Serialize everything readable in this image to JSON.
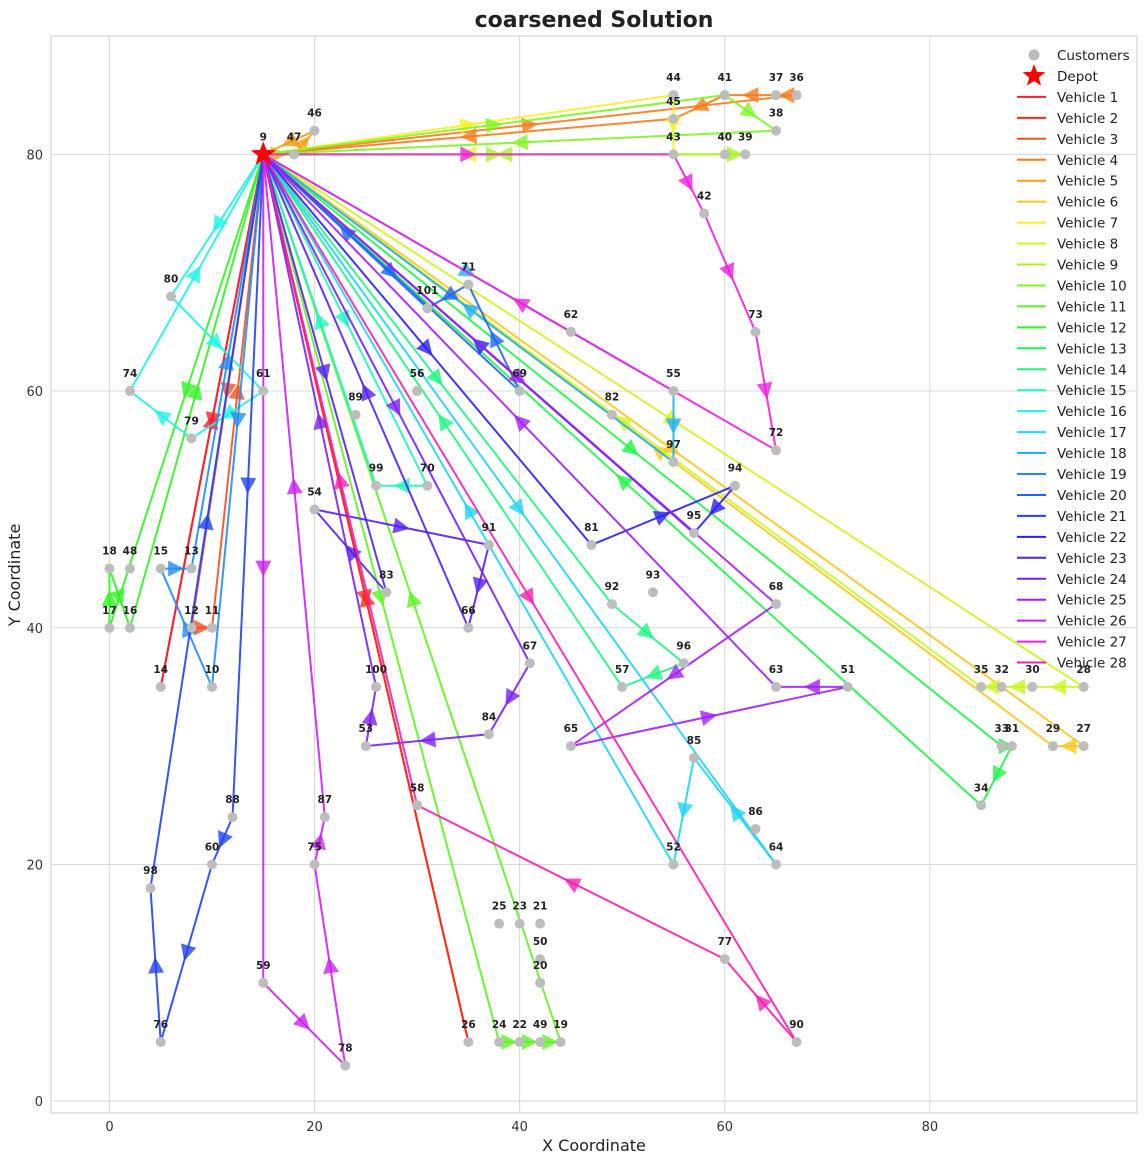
{
  "chart_data": {
    "type": "scatter",
    "title": "coarsened Solution",
    "xlabel": "X Coordinate",
    "ylabel": "Y Coordinate",
    "xlim": [
      -5.7,
      100.2
    ],
    "ylim": [
      -1.0,
      90.0
    ],
    "xticks": [
      0,
      20,
      40,
      60,
      80
    ],
    "yticks": [
      0,
      20,
      40,
      60,
      80
    ],
    "grid": true,
    "legend_position": "top-right",
    "depot": {
      "id": "9",
      "x": 15,
      "y": 80
    },
    "customers": [
      {
        "id": "9",
        "x": 15,
        "y": 80
      },
      {
        "id": "46",
        "x": 20,
        "y": 82
      },
      {
        "id": "47",
        "x": 18,
        "y": 80
      },
      {
        "id": "44",
        "x": 55,
        "y": 85
      },
      {
        "id": "41",
        "x": 60,
        "y": 85
      },
      {
        "id": "37",
        "x": 65,
        "y": 85
      },
      {
        "id": "36",
        "x": 67,
        "y": 85
      },
      {
        "id": "45",
        "x": 55,
        "y": 83
      },
      {
        "id": "38",
        "x": 65,
        "y": 82
      },
      {
        "id": "43",
        "x": 55,
        "y": 80
      },
      {
        "id": "40",
        "x": 60,
        "y": 80
      },
      {
        "id": "39",
        "x": 62,
        "y": 80
      },
      {
        "id": "42",
        "x": 58,
        "y": 75
      },
      {
        "id": "80",
        "x": 6,
        "y": 68
      },
      {
        "id": "71",
        "x": 35,
        "y": 69
      },
      {
        "id": "101",
        "x": 31,
        "y": 67
      },
      {
        "id": "62",
        "x": 45,
        "y": 65
      },
      {
        "id": "73",
        "x": 63,
        "y": 65
      },
      {
        "id": "74",
        "x": 2,
        "y": 60
      },
      {
        "id": "61",
        "x": 15,
        "y": 60
      },
      {
        "id": "89",
        "x": 24,
        "y": 58
      },
      {
        "id": "56",
        "x": 30,
        "y": 60
      },
      {
        "id": "69",
        "x": 40,
        "y": 60
      },
      {
        "id": "82",
        "x": 49,
        "y": 58
      },
      {
        "id": "55",
        "x": 55,
        "y": 60
      },
      {
        "id": "79",
        "x": 8,
        "y": 56
      },
      {
        "id": "97",
        "x": 55,
        "y": 54
      },
      {
        "id": "72",
        "x": 65,
        "y": 55
      },
      {
        "id": "99",
        "x": 26,
        "y": 52
      },
      {
        "id": "70",
        "x": 31,
        "y": 52
      },
      {
        "id": "94",
        "x": 61,
        "y": 52
      },
      {
        "id": "54",
        "x": 20,
        "y": 50
      },
      {
        "id": "95",
        "x": 57,
        "y": 48
      },
      {
        "id": "91",
        "x": 37,
        "y": 47
      },
      {
        "id": "81",
        "x": 47,
        "y": 47
      },
      {
        "id": "18",
        "x": 0,
        "y": 45
      },
      {
        "id": "48",
        "x": 2,
        "y": 45
      },
      {
        "id": "15",
        "x": 5,
        "y": 45
      },
      {
        "id": "13",
        "x": 8,
        "y": 45
      },
      {
        "id": "83",
        "x": 27,
        "y": 43
      },
      {
        "id": "92",
        "x": 49,
        "y": 42
      },
      {
        "id": "93",
        "x": 53,
        "y": 43
      },
      {
        "id": "68",
        "x": 65,
        "y": 42
      },
      {
        "id": "17",
        "x": 0,
        "y": 40
      },
      {
        "id": "16",
        "x": 2,
        "y": 40
      },
      {
        "id": "12",
        "x": 8,
        "y": 40
      },
      {
        "id": "11",
        "x": 10,
        "y": 40
      },
      {
        "id": "66",
        "x": 35,
        "y": 40
      },
      {
        "id": "14",
        "x": 5,
        "y": 35
      },
      {
        "id": "10",
        "x": 10,
        "y": 35
      },
      {
        "id": "100",
        "x": 26,
        "y": 35
      },
      {
        "id": "67",
        "x": 41,
        "y": 37
      },
      {
        "id": "57",
        "x": 50,
        "y": 35
      },
      {
        "id": "96",
        "x": 56,
        "y": 37
      },
      {
        "id": "63",
        "x": 65,
        "y": 35
      },
      {
        "id": "51",
        "x": 72,
        "y": 35
      },
      {
        "id": "35",
        "x": 85,
        "y": 35
      },
      {
        "id": "32",
        "x": 87,
        "y": 35
      },
      {
        "id": "30",
        "x": 90,
        "y": 35
      },
      {
        "id": "28",
        "x": 95,
        "y": 35
      },
      {
        "id": "53",
        "x": 25,
        "y": 30
      },
      {
        "id": "84",
        "x": 37,
        "y": 31
      },
      {
        "id": "65",
        "x": 45,
        "y": 30
      },
      {
        "id": "85",
        "x": 57,
        "y": 29
      },
      {
        "id": "33",
        "x": 87,
        "y": 30
      },
      {
        "id": "31",
        "x": 88,
        "y": 30
      },
      {
        "id": "29",
        "x": 92,
        "y": 30
      },
      {
        "id": "27",
        "x": 95,
        "y": 30
      },
      {
        "id": "88",
        "x": 12,
        "y": 24
      },
      {
        "id": "87",
        "x": 21,
        "y": 24
      },
      {
        "id": "58",
        "x": 30,
        "y": 25
      },
      {
        "id": "86",
        "x": 63,
        "y": 23
      },
      {
        "id": "34",
        "x": 85,
        "y": 25
      },
      {
        "id": "60",
        "x": 10,
        "y": 20
      },
      {
        "id": "75",
        "x": 20,
        "y": 20
      },
      {
        "id": "52",
        "x": 55,
        "y": 20
      },
      {
        "id": "64",
        "x": 65,
        "y": 20
      },
      {
        "id": "98",
        "x": 4,
        "y": 18
      },
      {
        "id": "25",
        "x": 38,
        "y": 15
      },
      {
        "id": "23",
        "x": 40,
        "y": 15
      },
      {
        "id": "21",
        "x": 42,
        "y": 15
      },
      {
        "id": "50",
        "x": 42,
        "y": 12
      },
      {
        "id": "20",
        "x": 42,
        "y": 10
      },
      {
        "id": "77",
        "x": 60,
        "y": 12
      },
      {
        "id": "59",
        "x": 15,
        "y": 10
      },
      {
        "id": "76",
        "x": 5,
        "y": 5
      },
      {
        "id": "26",
        "x": 35,
        "y": 5
      },
      {
        "id": "24",
        "x": 38,
        "y": 5
      },
      {
        "id": "22",
        "x": 40,
        "y": 5
      },
      {
        "id": "49",
        "x": 42,
        "y": 5
      },
      {
        "id": "19",
        "x": 44,
        "y": 5
      },
      {
        "id": "90",
        "x": 67,
        "y": 5
      },
      {
        "id": "78",
        "x": 23,
        "y": 3
      }
    ],
    "series": [
      {
        "name": "Vehicle 1",
        "color": "#ff1f2d",
        "route": [
          "9",
          "14",
          "9"
        ]
      },
      {
        "name": "Vehicle 2",
        "color": "#ff2a1a",
        "route": [
          "9",
          "26",
          "9"
        ]
      },
      {
        "name": "Vehicle 3",
        "color": "#f4501f",
        "route": [
          "9",
          "12",
          "11",
          "9"
        ]
      },
      {
        "name": "Vehicle 4",
        "color": "#f87a19",
        "route": [
          "9",
          "36",
          "37",
          "41",
          "45",
          "9"
        ]
      },
      {
        "name": "Vehicle 5",
        "color": "#f99a12",
        "route": [
          "9",
          "47",
          "46",
          "9"
        ]
      },
      {
        "name": "Vehicle 6",
        "color": "#f8c81b",
        "route": [
          "9",
          "27",
          "29",
          "9"
        ]
      },
      {
        "name": "Vehicle 7",
        "color": "#f5f21f",
        "route": [
          "9",
          "44",
          "43",
          "9"
        ]
      },
      {
        "name": "Vehicle 8",
        "color": "#cdf51f",
        "route": [
          "9",
          "28",
          "30",
          "32",
          "35",
          "9"
        ]
      },
      {
        "name": "Vehicle 9",
        "color": "#a6f51f",
        "route": [
          "9",
          "40",
          "39",
          "9"
        ]
      },
      {
        "name": "Vehicle 10",
        "color": "#80f520",
        "route": [
          "9",
          "41",
          "38",
          "9"
        ]
      },
      {
        "name": "Vehicle 11",
        "color": "#5ef51f",
        "route": [
          "9",
          "24",
          "22",
          "49",
          "19",
          "9"
        ]
      },
      {
        "name": "Vehicle 12",
        "color": "#2ef51f",
        "route": [
          "9",
          "17",
          "18",
          "16",
          "9"
        ]
      },
      {
        "name": "Vehicle 13",
        "color": "#1ff54a",
        "route": [
          "9",
          "33",
          "31",
          "34",
          "9"
        ]
      },
      {
        "name": "Vehicle 14",
        "color": "#1ff583",
        "route": [
          "9",
          "92",
          "96",
          "57",
          "9"
        ]
      },
      {
        "name": "Vehicle 15",
        "color": "#1ff5bd",
        "route": [
          "9",
          "70",
          "99",
          "9"
        ]
      },
      {
        "name": "Vehicle 16",
        "color": "#1ff2e8",
        "route": [
          "9",
          "80",
          "61",
          "79",
          "74",
          "9"
        ]
      },
      {
        "name": "Vehicle 17",
        "color": "#1fd3f5",
        "route": [
          "9",
          "64",
          "85",
          "52",
          "9"
        ]
      },
      {
        "name": "Vehicle 18",
        "color": "#1fb0f5",
        "route": [
          "9",
          "55",
          "97",
          "9"
        ]
      },
      {
        "name": "Vehicle 19",
        "color": "#1f8cf5",
        "route": [
          "9",
          "10",
          "15",
          "13",
          "9"
        ]
      },
      {
        "name": "Vehicle 20",
        "color": "#1f66f5",
        "route": [
          "9",
          "69",
          "71",
          "101",
          "9"
        ]
      },
      {
        "name": "Vehicle 21",
        "color": "#1f42f5",
        "route": [
          "9",
          "88",
          "60",
          "76",
          "98",
          "9"
        ]
      },
      {
        "name": "Vehicle 22",
        "color": "#2a1ff5",
        "route": [
          "9",
          "81",
          "94",
          "95",
          "9"
        ]
      },
      {
        "name": "Vehicle 23",
        "color": "#541ff5",
        "route": [
          "9",
          "83",
          "54",
          "91",
          "66",
          "9"
        ]
      },
      {
        "name": "Vehicle 24",
        "color": "#7a1ff5",
        "route": [
          "9",
          "67",
          "84",
          "53",
          "100",
          "9"
        ]
      },
      {
        "name": "Vehicle 25",
        "color": "#a31ff5",
        "route": [
          "9",
          "68",
          "65",
          "51",
          "63",
          "9"
        ]
      },
      {
        "name": "Vehicle 26",
        "color": "#cc1ff5",
        "route": [
          "9",
          "59",
          "78",
          "75",
          "87",
          "9"
        ]
      },
      {
        "name": "Vehicle 27",
        "color": "#ee1fe0",
        "route": [
          "9",
          "43",
          "42",
          "73",
          "72",
          "9"
        ]
      },
      {
        "name": "Vehicle 28",
        "color": "#f51fb5",
        "route": [
          "9",
          "90",
          "77",
          "58",
          "9"
        ]
      }
    ],
    "legend": {
      "customers_label": "Customers",
      "depot_label": "Depot"
    }
  }
}
